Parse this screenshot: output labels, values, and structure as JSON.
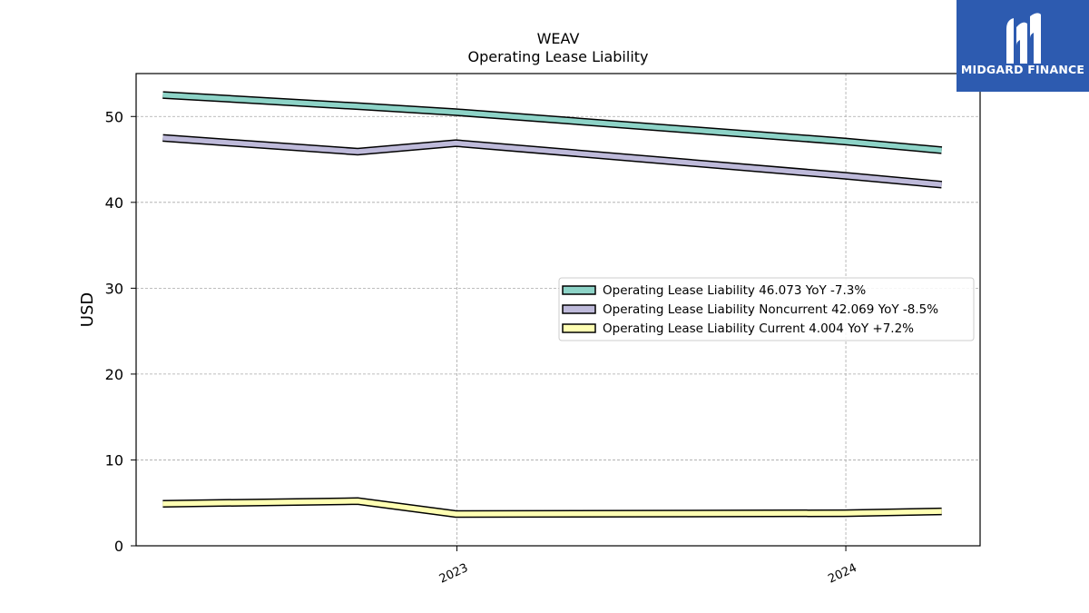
{
  "chart_data": {
    "type": "line",
    "title": "WEAV",
    "subtitle": "Operating Lease Liability",
    "ylabel": "USD",
    "xlabel": "",
    "ylim": [
      0,
      55
    ],
    "xlim": [
      "2022-03-06",
      "2024-05-06"
    ],
    "yticks": [
      0,
      10,
      20,
      30,
      40,
      50
    ],
    "xticks": [
      {
        "date": "2023-01-01",
        "label": "2023"
      },
      {
        "date": "2024-01-01",
        "label": "2024"
      }
    ],
    "grid": true,
    "legend_position": "center-right",
    "x": [
      "2022-03-31",
      "2022-09-30",
      "2022-12-31",
      "2023-12-31",
      "2024-03-31"
    ],
    "series": [
      {
        "name": "Operating Lease Liability",
        "legend": "Operating Lease Liability  46.073 YoY -7.3%",
        "color": "#8dd3c7",
        "values": [
          52.5,
          51.2,
          50.5,
          47.1,
          46.073
        ]
      },
      {
        "name": "Operating Lease Liability Noncurrent",
        "legend": "Operating Lease Liability Noncurrent  42.069 YoY -8.5%",
        "color": "#bebada",
        "values": [
          47.5,
          45.9,
          46.9,
          43.1,
          42.069
        ]
      },
      {
        "name": "Operating Lease Liability Current",
        "legend": "Operating Lease Liability Current  4.004 YoY +7.2%",
        "color": "#ffffb3",
        "values": [
          4.9,
          5.2,
          3.7,
          3.8,
          4.004
        ]
      }
    ]
  },
  "logo": {
    "text": "MIDGARD FINANCE"
  }
}
